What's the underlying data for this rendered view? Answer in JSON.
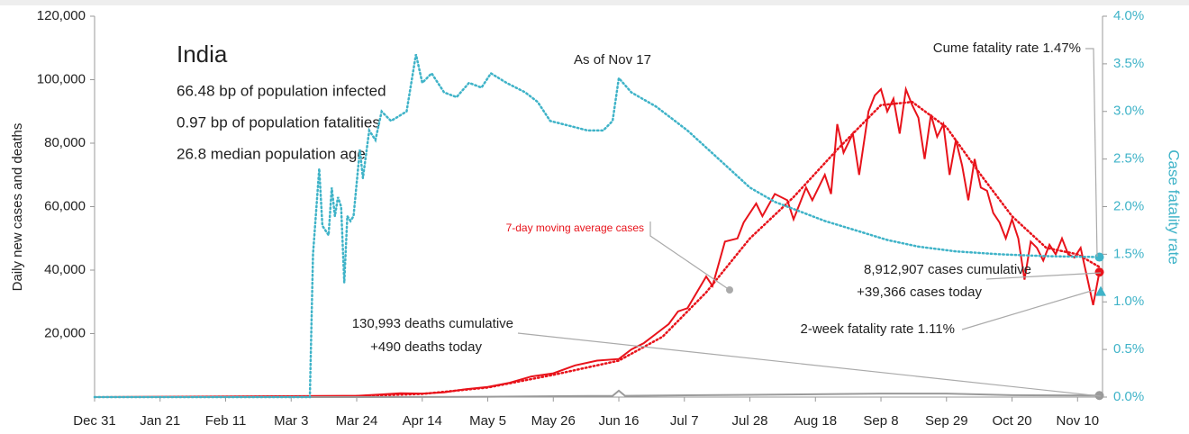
{
  "chart_data": {
    "type": "line",
    "y_label": "Daily new cases and deaths",
    "y2_label": "Case fatality rate",
    "xlim": [
      0,
      323
    ],
    "xticks": [
      {
        "value": 0,
        "label": "Dec 31"
      },
      {
        "value": 21,
        "label": "Jan 21"
      },
      {
        "value": 42,
        "label": "Feb 11"
      },
      {
        "value": 63,
        "label": "Mar 3"
      },
      {
        "value": 84,
        "label": "Mar 24"
      },
      {
        "value": 105,
        "label": "Apr 14"
      },
      {
        "value": 126,
        "label": "May 5"
      },
      {
        "value": 147,
        "label": "May 26"
      },
      {
        "value": 168,
        "label": "Jun 16"
      },
      {
        "value": 189,
        "label": "Jul 7"
      },
      {
        "value": 210,
        "label": "Jul 28"
      },
      {
        "value": 231,
        "label": "Aug 18"
      },
      {
        "value": 252,
        "label": "Sep 8"
      },
      {
        "value": 273,
        "label": "Sep 29"
      },
      {
        "value": 294,
        "label": "Oct 20"
      },
      {
        "value": 315,
        "label": "Nov 10"
      }
    ],
    "ylim": [
      0,
      120000
    ],
    "yticks": [
      {
        "value": 20000,
        "label": "20,000"
      },
      {
        "value": 40000,
        "label": "40,000"
      },
      {
        "value": 60000,
        "label": "60,000"
      },
      {
        "value": 80000,
        "label": "80,000"
      },
      {
        "value": 100000,
        "label": "100,000"
      },
      {
        "value": 120000,
        "label": "120,000"
      }
    ],
    "y2lim": [
      0,
      4
    ],
    "y2ticks": [
      {
        "value": 0,
        "label": "0.0%"
      },
      {
        "value": 0.5,
        "label": "0.5%"
      },
      {
        "value": 1,
        "label": "1.0%"
      },
      {
        "value": 1.5,
        "label": "1.5%"
      },
      {
        "value": 2,
        "label": "2.0%"
      },
      {
        "value": 2.5,
        "label": "2.5%"
      },
      {
        "value": 3,
        "label": "3.0%"
      },
      {
        "value": 3.5,
        "label": "3.5%"
      },
      {
        "value": 4,
        "label": "4.0%"
      }
    ],
    "series": [
      {
        "color": "#e8131b",
        "style": "solid",
        "x": [
          0,
          84,
          91,
          98,
          105,
          112,
          119,
          126,
          133,
          140,
          147,
          154,
          161,
          168,
          172,
          176,
          180,
          184,
          187,
          190,
          196,
          198,
          202,
          206,
          208,
          212,
          214,
          218,
          222,
          224,
          228,
          230,
          234,
          236,
          238,
          240,
          243,
          245,
          248,
          250,
          252,
          254,
          256,
          258,
          260,
          262,
          264,
          266,
          268,
          270,
          272,
          274,
          276,
          278,
          280,
          282,
          284,
          286,
          288,
          290,
          292,
          294,
          296,
          298,
          300,
          302,
          304,
          306,
          308,
          310,
          312,
          314,
          316,
          318,
          320,
          322
        ],
        "values": [
          0,
          400,
          800,
          1200,
          1100,
          1500,
          2500,
          3200,
          4500,
          6500,
          7500,
          10000,
          11500,
          12000,
          15000,
          17000,
          20000,
          23000,
          27000,
          28000,
          38000,
          35000,
          49000,
          50000,
          55000,
          61000,
          57000,
          64000,
          62000,
          56000,
          66000,
          62000,
          70000,
          64000,
          86000,
          77000,
          83000,
          70000,
          90000,
          95000,
          97000,
          90000,
          94000,
          83000,
          97000,
          92000,
          88000,
          75000,
          89000,
          82000,
          86000,
          70000,
          81000,
          73000,
          62000,
          75000,
          66000,
          65000,
          58000,
          55000,
          50000,
          56000,
          50000,
          37000,
          49000,
          47000,
          43000,
          48000,
          45000,
          50000,
          45000,
          44000,
          47000,
          38000,
          29000,
          39366
        ]
      },
      {
        "color": "#e8131b",
        "style": "dotted",
        "x": [
          84,
          105,
          126,
          147,
          168,
          182,
          196,
          210,
          224,
          238,
          252,
          262,
          273,
          284,
          294,
          305,
          315,
          322
        ],
        "values": [
          300,
          1000,
          3000,
          7000,
          11500,
          19000,
          33000,
          50000,
          63000,
          78000,
          92000,
          93000,
          85000,
          70000,
          57000,
          47000,
          45000,
          41000
        ]
      },
      {
        "color": "#9a9a9a",
        "style": "solid",
        "x": [
          0,
          84,
          126,
          166,
          168,
          170,
          210,
          252,
          273,
          294,
          322
        ],
        "values": [
          0,
          10,
          100,
          400,
          2000,
          400,
          700,
          1100,
          1100,
          600,
          490
        ]
      },
      {
        "color": "#3fb3c8",
        "style": "dotted",
        "axis": "y2",
        "x": [
          0,
          69,
          70,
          72,
          73,
          75,
          76,
          77,
          78,
          79,
          80,
          81,
          82,
          83,
          85,
          86,
          88,
          90,
          92,
          95,
          100,
          103,
          105,
          108,
          112,
          116,
          120,
          124,
          127,
          132,
          138,
          142,
          146,
          152,
          158,
          163,
          166,
          168,
          172,
          180,
          190,
          200,
          210,
          218,
          226,
          234,
          244,
          254,
          264,
          276,
          290,
          305,
          322
        ],
        "values": [
          0,
          0,
          1.5,
          2.4,
          1.8,
          1.7,
          2.2,
          1.9,
          2.1,
          2.0,
          1.2,
          1.9,
          1.85,
          1.9,
          2.6,
          2.3,
          2.8,
          2.7,
          3.0,
          2.9,
          3.0,
          3.6,
          3.3,
          3.4,
          3.2,
          3.15,
          3.3,
          3.25,
          3.4,
          3.3,
          3.2,
          3.1,
          2.9,
          2.85,
          2.8,
          2.8,
          2.9,
          3.35,
          3.2,
          3.05,
          2.8,
          2.5,
          2.2,
          2.05,
          1.95,
          1.85,
          1.75,
          1.65,
          1.58,
          1.53,
          1.5,
          1.48,
          1.47
        ]
      }
    ],
    "two_week_fatality_rate": 1.11,
    "title": "India",
    "stats": [
      "66.48 bp of population infected",
      "0.97 bp of population fatalities",
      "26.8 median population age"
    ],
    "annotations": [
      "As of Nov 17",
      "Cume fatality rate 1.47%",
      "7-day moving average cases",
      "8,912,907 cases cumulative",
      "+39,366 cases today",
      "2-week fatality rate 1.11%",
      "130,993 deaths cumulative",
      "+490 deaths today"
    ]
  }
}
